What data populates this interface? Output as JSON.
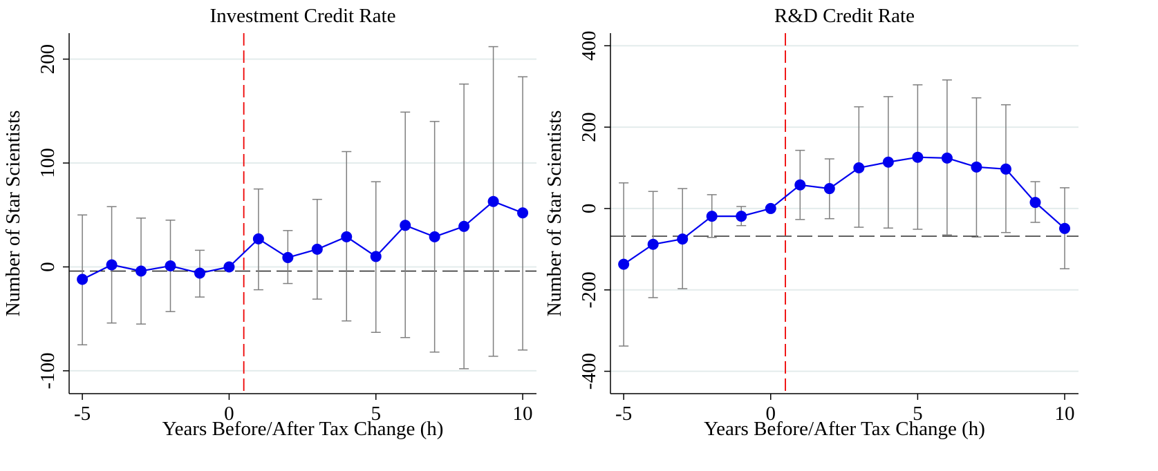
{
  "chart_data": [
    {
      "type": "line",
      "title": "Investment Credit Rate",
      "x_label": "Years Before/After Tax Change (h)",
      "y_label": "Number of Star Scientists",
      "x": [
        -5,
        -4,
        -3,
        -2,
        -1,
        0,
        1,
        2,
        3,
        4,
        5,
        6,
        7,
        8,
        9,
        10
      ],
      "series": [
        {
          "color": "#0000ee",
          "values": [
            -12,
            2,
            -4,
            1,
            -6,
            0,
            27,
            9,
            17,
            29,
            10,
            40,
            29,
            39,
            63,
            52
          ],
          "ci_lower": [
            -75,
            -54,
            -55,
            -43,
            -29,
            null,
            -22,
            -16,
            -31,
            -52,
            -63,
            -68,
            -82,
            -98,
            -86,
            -80
          ],
          "ci_upper": [
            50,
            58,
            47,
            45,
            16,
            null,
            75,
            35,
            65,
            111,
            82,
            149,
            140,
            176,
            212,
            183
          ]
        }
      ],
      "xlim": [
        -5.45,
        10.47
      ],
      "ylim": [
        -122,
        225
      ],
      "xticks": [
        -5,
        0,
        5,
        10
      ],
      "yticks": [
        -100,
        0,
        100,
        200
      ],
      "reference_line": -4,
      "event_line": 0.5,
      "grid": true
    },
    {
      "type": "line",
      "title": "R&D Credit Rate",
      "x_label": "Years Before/After Tax Change (h)",
      "y_label": "Number of Star Scientists",
      "x": [
        -5,
        -4,
        -3,
        -2,
        -1,
        0,
        1,
        2,
        3,
        4,
        5,
        6,
        7,
        8,
        9,
        10
      ],
      "series": [
        {
          "color": "#0000ee",
          "values": [
            -137,
            -88,
            -75,
            -19,
            -19,
            0,
            58,
            49,
            100,
            114,
            126,
            124,
            102,
            97,
            15,
            -49
          ],
          "ci_lower": [
            -338,
            -219,
            -197,
            -71,
            -42,
            null,
            -27,
            -25,
            -46,
            -48,
            -51,
            -65,
            -70,
            -59,
            -34,
            -148
          ],
          "ci_upper": [
            63,
            42,
            49,
            34,
            5,
            null,
            143,
            122,
            250,
            275,
            304,
            316,
            272,
            255,
            66,
            51
          ]
        }
      ],
      "xlim": [
        -5.45,
        10.47
      ],
      "ylim": [
        -455,
        431
      ],
      "xticks": [
        -5,
        0,
        5,
        10
      ],
      "yticks": [
        -400,
        -200,
        0,
        200,
        400
      ],
      "reference_line": -68,
      "event_line": 0.5,
      "grid": true
    }
  ]
}
